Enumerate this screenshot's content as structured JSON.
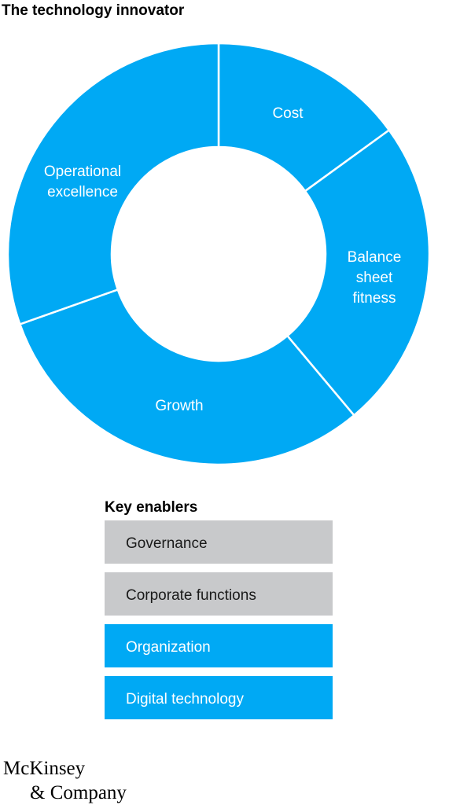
{
  "header": {
    "title": "The technology innovator"
  },
  "donut": {
    "segments": [
      {
        "label_lines": [
          "Cost"
        ]
      },
      {
        "label_lines": [
          "Balance",
          "sheet",
          "fitness"
        ]
      },
      {
        "label_lines": [
          "Growth"
        ]
      },
      {
        "label_lines": [
          "Operational",
          "excellence"
        ]
      }
    ]
  },
  "key_enablers": {
    "title": "Key enablers",
    "items": [
      {
        "label": "Governance",
        "style": "gray"
      },
      {
        "label": "Corporate functions",
        "style": "gray"
      },
      {
        "label": "Organization",
        "style": "blue"
      },
      {
        "label": "Digital technology",
        "style": "blue"
      }
    ]
  },
  "footer": {
    "logo_lines": [
      "McKinsey",
      "& Company"
    ]
  }
}
